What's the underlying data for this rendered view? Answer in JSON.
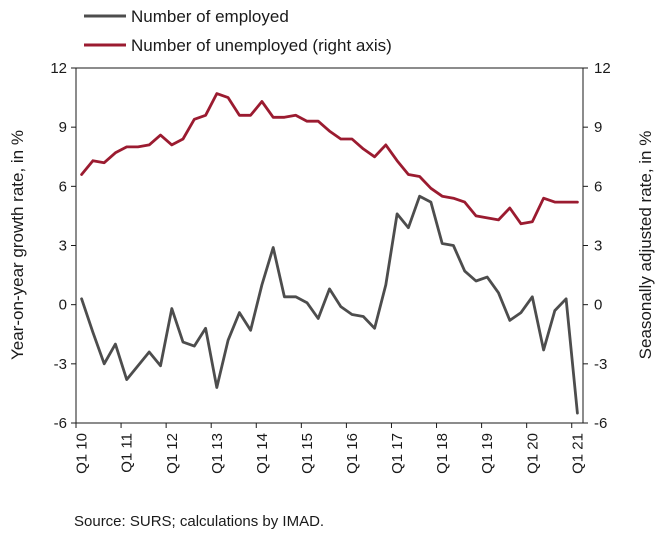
{
  "chart_data": {
    "type": "line",
    "source": "Source: SURS; calculations by IMAD.",
    "y_left_label": "Year-on-year growth rate, in %",
    "y_right_label": "Seasonally adjusted rate, in %",
    "ylim": [
      -6,
      12
    ],
    "y_ticks": [
      12,
      9,
      6,
      3,
      0,
      -3,
      -6
    ],
    "x_tick_labels": [
      "Q1 10",
      "Q1 11",
      "Q1 12",
      "Q1 13",
      "Q1 14",
      "Q1 15",
      "Q1 16",
      "Q1 17",
      "Q1 18",
      "Q1 19",
      "Q1 20",
      "Q1 21"
    ],
    "x": [
      "Q1 10",
      "Q2 10",
      "Q3 10",
      "Q4 10",
      "Q1 11",
      "Q2 11",
      "Q3 11",
      "Q4 11",
      "Q1 12",
      "Q2 12",
      "Q3 12",
      "Q4 12",
      "Q1 13",
      "Q2 13",
      "Q3 13",
      "Q4 13",
      "Q1 14",
      "Q2 14",
      "Q3 14",
      "Q4 14",
      "Q1 15",
      "Q2 15",
      "Q3 15",
      "Q4 15",
      "Q1 16",
      "Q2 16",
      "Q3 16",
      "Q4 16",
      "Q1 17",
      "Q2 17",
      "Q3 17",
      "Q4 17",
      "Q1 18",
      "Q2 18",
      "Q3 18",
      "Q4 18",
      "Q1 19",
      "Q2 19",
      "Q3 19",
      "Q4 19",
      "Q1 20",
      "Q2 20",
      "Q3 20",
      "Q4 20",
      "Q1 21"
    ],
    "legend_position": "top-left",
    "grid": false,
    "series": [
      {
        "name": "Number of employed",
        "axis": "left",
        "color": "#4d4d4d",
        "values": [
          0.3,
          -1.4,
          -3.0,
          -2.0,
          -3.8,
          -3.1,
          -2.4,
          -3.1,
          -0.2,
          -1.9,
          -2.1,
          -1.2,
          -4.2,
          -1.8,
          -0.4,
          -1.3,
          1.0,
          2.9,
          0.4,
          0.4,
          0.1,
          -0.7,
          0.8,
          -0.1,
          -0.5,
          -0.6,
          -1.2,
          1.0,
          4.6,
          3.9,
          5.5,
          5.2,
          3.1,
          3.0,
          1.7,
          1.2,
          1.4,
          0.6,
          -0.8,
          -0.4,
          0.4,
          -2.3,
          -0.3,
          0.3,
          -5.5
        ]
      },
      {
        "name": "Number of unemployed (right axis)",
        "axis": "right",
        "color": "#9b1b30",
        "values": [
          6.6,
          7.3,
          7.2,
          7.7,
          8.0,
          8.0,
          8.1,
          8.6,
          8.1,
          8.4,
          9.4,
          9.6,
          10.7,
          10.5,
          9.6,
          9.6,
          10.3,
          9.5,
          9.5,
          9.6,
          9.3,
          9.3,
          8.8,
          8.4,
          8.4,
          7.9,
          7.5,
          8.1,
          7.3,
          6.6,
          6.5,
          5.9,
          5.5,
          5.4,
          5.2,
          4.5,
          4.4,
          4.3,
          4.9,
          4.1,
          4.2,
          5.4,
          5.2,
          5.2,
          5.2
        ]
      }
    ]
  }
}
